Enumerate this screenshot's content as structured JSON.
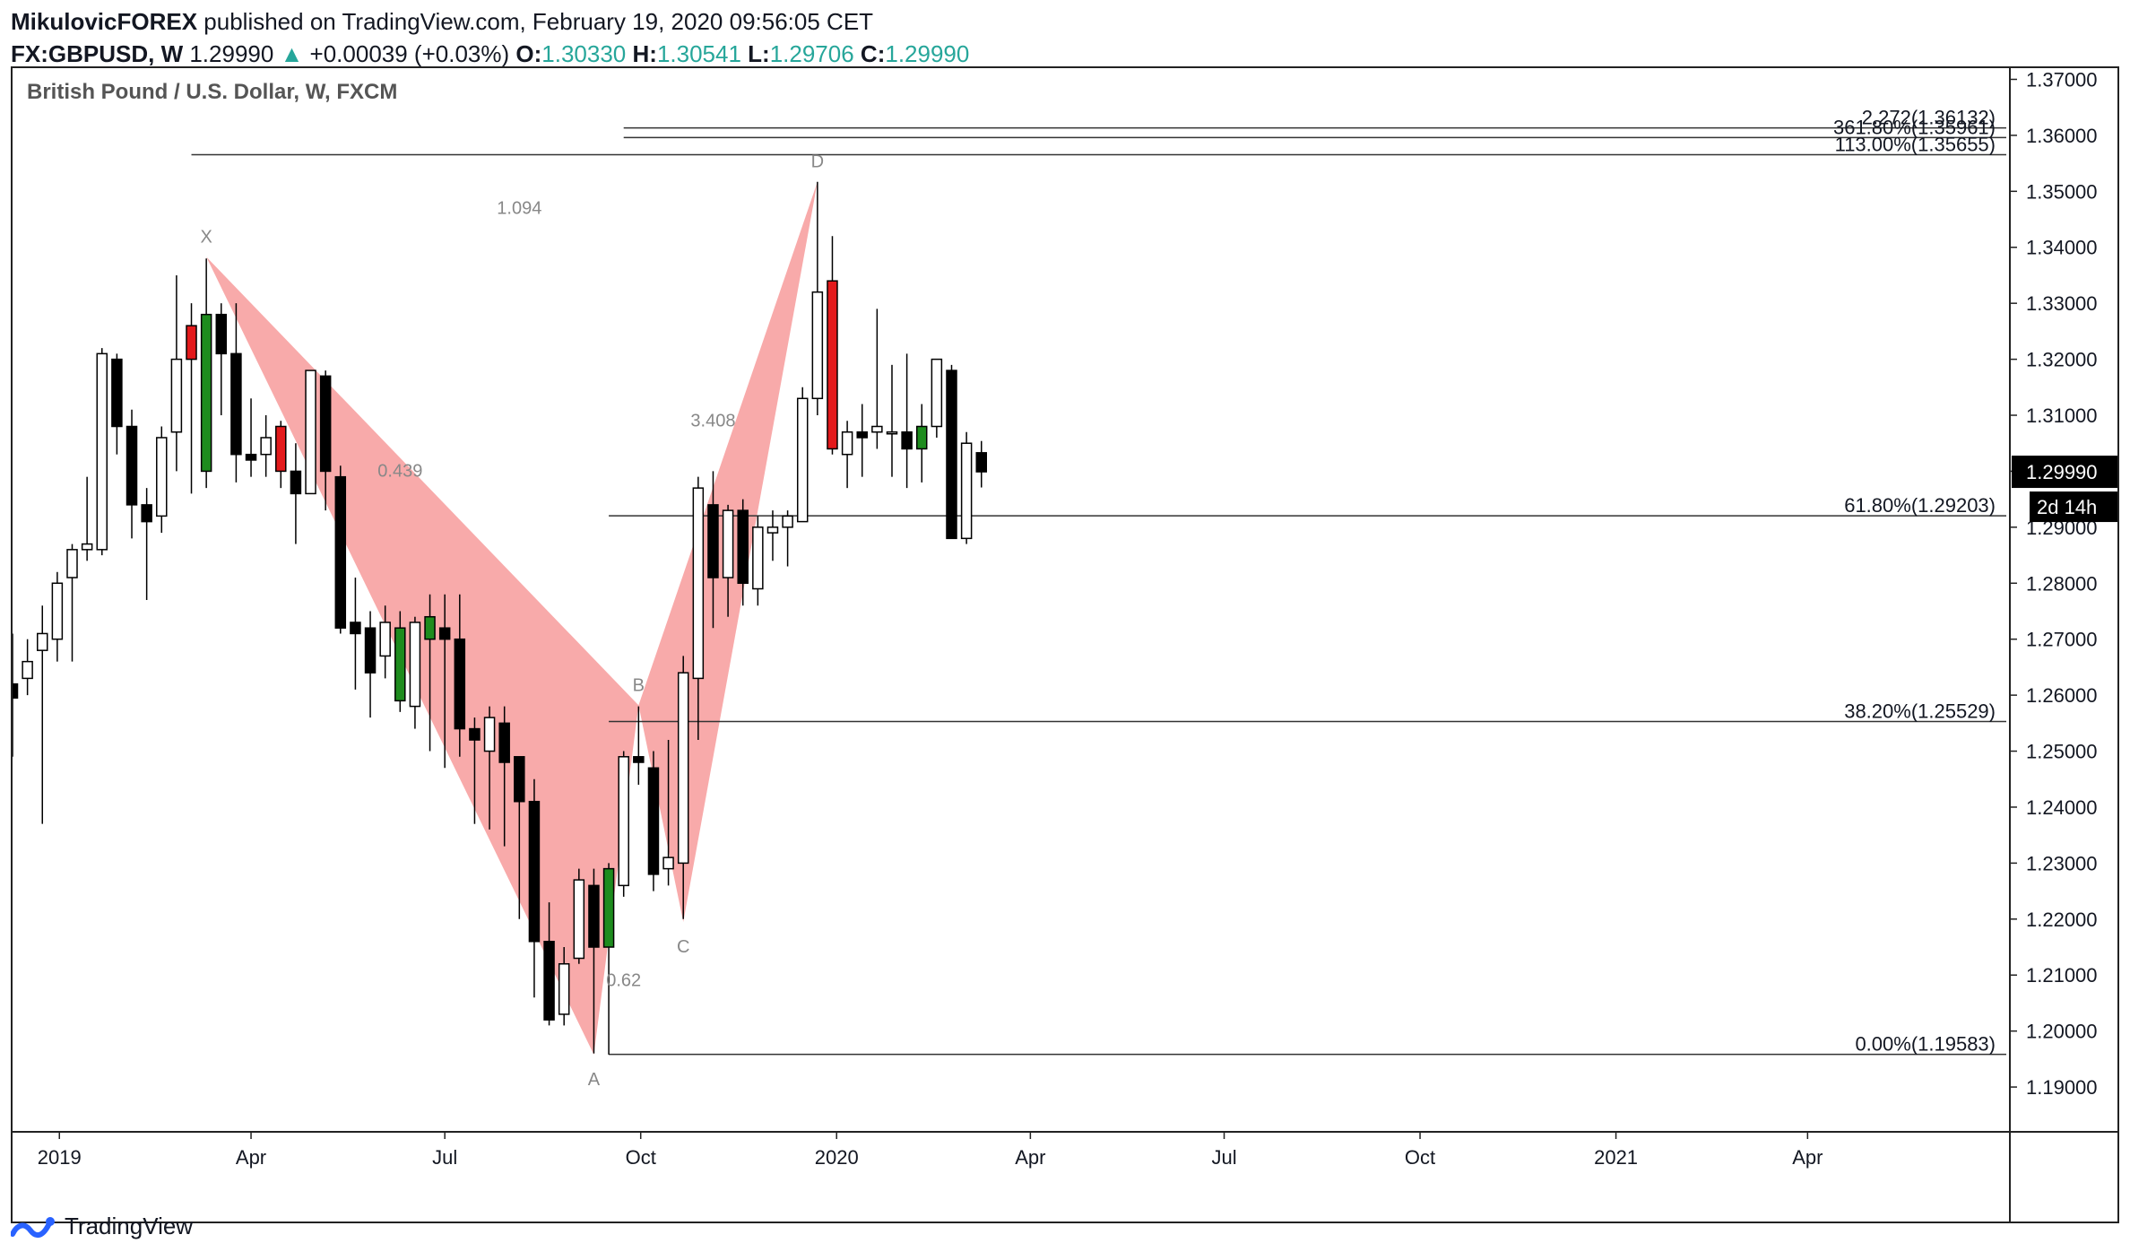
{
  "header": {
    "author": "MikulovicFOREX",
    "published": "published on TradingView.com, February 19, 2020 09:56:05 CET",
    "symbol": "FX:GBPUSD, W",
    "last": "1.29990",
    "change_arrow": "▲",
    "change": "+0.00039 (+0.03%)",
    "o_label": "O:",
    "o_value": "1.30330",
    "h_label": "H:",
    "h_value": "1.30541",
    "l_label": "L:",
    "l_value": "1.29706",
    "c_label": "C:",
    "c_value": "1.29990"
  },
  "footer": {
    "brand": "TradingView",
    "logo_icon": "tradingview-logo-icon"
  },
  "colors": {
    "pattern_fill": "#f8a5a5",
    "bull_highlight": "#1e8c1e",
    "bear_highlight": "#e31a1c",
    "up_text": "#26a69a"
  },
  "chart_data": {
    "type": "candlestick",
    "title": "British Pound / U.S. Dollar, W, FXCM",
    "ylim": [
      1.182,
      1.372
    ],
    "x_start": "2018-12-10",
    "x_end": "2021-07-05",
    "yticks": [
      "1.37000",
      "1.36000",
      "1.35000",
      "1.34000",
      "1.33000",
      "1.32000",
      "1.31000",
      "1.30000",
      "1.29000",
      "1.28000",
      "1.27000",
      "1.26000",
      "1.25000",
      "1.24000",
      "1.23000",
      "1.22000",
      "1.21000",
      "1.20000",
      "1.19000"
    ],
    "xticks": [
      {
        "label": "2019",
        "date": "2019-01-01"
      },
      {
        "label": "Apr",
        "date": "2019-04-01"
      },
      {
        "label": "Jul",
        "date": "2019-07-01"
      },
      {
        "label": "Oct",
        "date": "2019-10-01"
      },
      {
        "label": "2020",
        "date": "2020-01-01"
      },
      {
        "label": "Apr",
        "date": "2020-04-01"
      },
      {
        "label": "Jul",
        "date": "2020-07-01"
      },
      {
        "label": "Oct",
        "date": "2020-10-01"
      },
      {
        "label": "2021",
        "date": "2021-01-01"
      },
      {
        "label": "Apr",
        "date": "2021-04-01"
      }
    ],
    "last_price_label": "1.29990",
    "countdown_label": "2d 14h",
    "last_price": 1.2999,
    "candles": [
      {
        "date": "2018-12-10",
        "o": 1.262,
        "h": 1.271,
        "l": 1.249,
        "c": 1.2595
      },
      {
        "date": "2018-12-17",
        "o": 1.263,
        "h": 1.27,
        "l": 1.26,
        "c": 1.266
      },
      {
        "date": "2018-12-24",
        "o": 1.268,
        "h": 1.276,
        "l": 1.237,
        "c": 1.271
      },
      {
        "date": "2018-12-31",
        "o": 1.27,
        "h": 1.282,
        "l": 1.266,
        "c": 1.28
      },
      {
        "date": "2019-01-07",
        "o": 1.281,
        "h": 1.287,
        "l": 1.266,
        "c": 1.286
      },
      {
        "date": "2019-01-14",
        "o": 1.286,
        "h": 1.299,
        "l": 1.284,
        "c": 1.287
      },
      {
        "date": "2019-01-21",
        "o": 1.286,
        "h": 1.322,
        "l": 1.285,
        "c": 1.321
      },
      {
        "date": "2019-01-28",
        "o": 1.32,
        "h": 1.321,
        "l": 1.303,
        "c": 1.308
      },
      {
        "date": "2019-02-04",
        "o": 1.308,
        "h": 1.311,
        "l": 1.288,
        "c": 1.294
      },
      {
        "date": "2019-02-11",
        "o": 1.294,
        "h": 1.297,
        "l": 1.277,
        "c": 1.291
      },
      {
        "date": "2019-02-18",
        "o": 1.292,
        "h": 1.308,
        "l": 1.289,
        "c": 1.306
      },
      {
        "date": "2019-02-25",
        "o": 1.307,
        "h": 1.335,
        "l": 1.3,
        "c": 1.32
      },
      {
        "date": "2019-03-04",
        "o": 1.32,
        "h": 1.33,
        "l": 1.296,
        "c": 1.326
      },
      {
        "date": "2019-03-11",
        "o": 1.3,
        "h": 1.338,
        "l": 1.297,
        "c": 1.328
      },
      {
        "date": "2019-03-18",
        "o": 1.328,
        "h": 1.33,
        "l": 1.31,
        "c": 1.321
      },
      {
        "date": "2019-03-25",
        "o": 1.321,
        "h": 1.33,
        "l": 1.298,
        "c": 1.303
      },
      {
        "date": "2019-04-01",
        "o": 1.303,
        "h": 1.313,
        "l": 1.299,
        "c": 1.302
      },
      {
        "date": "2019-04-08",
        "o": 1.303,
        "h": 1.31,
        "l": 1.299,
        "c": 1.306
      },
      {
        "date": "2019-04-15",
        "o": 1.308,
        "h": 1.309,
        "l": 1.297,
        "c": 1.3
      },
      {
        "date": "2019-04-22",
        "o": 1.3,
        "h": 1.305,
        "l": 1.287,
        "c": 1.296
      },
      {
        "date": "2019-04-29",
        "o": 1.296,
        "h": 1.318,
        "l": 1.296,
        "c": 1.318
      },
      {
        "date": "2019-05-06",
        "o": 1.317,
        "h": 1.318,
        "l": 1.293,
        "c": 1.3
      },
      {
        "date": "2019-05-13",
        "o": 1.299,
        "h": 1.301,
        "l": 1.271,
        "c": 1.272
      },
      {
        "date": "2019-05-20",
        "o": 1.273,
        "h": 1.281,
        "l": 1.261,
        "c": 1.271
      },
      {
        "date": "2019-05-27",
        "o": 1.272,
        "h": 1.275,
        "l": 1.256,
        "c": 1.264
      },
      {
        "date": "2019-06-03",
        "o": 1.267,
        "h": 1.276,
        "l": 1.263,
        "c": 1.273
      },
      {
        "date": "2019-06-10",
        "o": 1.272,
        "h": 1.275,
        "l": 1.257,
        "c": 1.259
      },
      {
        "date": "2019-06-17",
        "o": 1.258,
        "h": 1.274,
        "l": 1.254,
        "c": 1.273
      },
      {
        "date": "2019-06-24",
        "o": 1.274,
        "h": 1.278,
        "l": 1.25,
        "c": 1.27
      },
      {
        "date": "2019-07-01",
        "o": 1.272,
        "h": 1.278,
        "l": 1.247,
        "c": 1.27
      },
      {
        "date": "2019-07-08",
        "o": 1.27,
        "h": 1.278,
        "l": 1.249,
        "c": 1.254
      },
      {
        "date": "2019-07-15",
        "o": 1.254,
        "h": 1.256,
        "l": 1.237,
        "c": 1.252
      },
      {
        "date": "2019-07-22",
        "o": 1.25,
        "h": 1.258,
        "l": 1.236,
        "c": 1.256
      },
      {
        "date": "2019-07-29",
        "o": 1.255,
        "h": 1.258,
        "l": 1.233,
        "c": 1.248
      },
      {
        "date": "2019-08-05",
        "o": 1.249,
        "h": 1.249,
        "l": 1.22,
        "c": 1.241
      },
      {
        "date": "2019-08-12",
        "o": 1.241,
        "h": 1.245,
        "l": 1.206,
        "c": 1.216
      },
      {
        "date": "2019-08-19",
        "o": 1.216,
        "h": 1.223,
        "l": 1.201,
        "c": 1.202
      },
      {
        "date": "2019-08-26",
        "o": 1.203,
        "h": 1.215,
        "l": 1.201,
        "c": 1.212
      },
      {
        "date": "2019-09-02",
        "o": 1.213,
        "h": 1.229,
        "l": 1.212,
        "c": 1.227
      },
      {
        "date": "2019-09-09",
        "o": 1.226,
        "h": 1.229,
        "l": 1.196,
        "c": 1.215
      },
      {
        "date": "2019-09-16",
        "o": 1.215,
        "h": 1.23,
        "l": 1.1958,
        "c": 1.229
      },
      {
        "date": "2019-09-23",
        "o": 1.226,
        "h": 1.25,
        "l": 1.224,
        "c": 1.249
      },
      {
        "date": "2019-09-30",
        "o": 1.249,
        "h": 1.258,
        "l": 1.244,
        "c": 1.248
      },
      {
        "date": "2019-10-07",
        "o": 1.247,
        "h": 1.25,
        "l": 1.225,
        "c": 1.228
      },
      {
        "date": "2019-10-14",
        "o": 1.229,
        "h": 1.252,
        "l": 1.226,
        "c": 1.231
      },
      {
        "date": "2019-10-21",
        "o": 1.23,
        "h": 1.267,
        "l": 1.22,
        "c": 1.264
      },
      {
        "date": "2019-10-28",
        "o": 1.263,
        "h": 1.299,
        "l": 1.252,
        "c": 1.297
      },
      {
        "date": "2019-11-04",
        "o": 1.294,
        "h": 1.3,
        "l": 1.272,
        "c": 1.281
      },
      {
        "date": "2019-11-11",
        "o": 1.281,
        "h": 1.294,
        "l": 1.274,
        "c": 1.293
      },
      {
        "date": "2019-11-18",
        "o": 1.293,
        "h": 1.295,
        "l": 1.276,
        "c": 1.28
      },
      {
        "date": "2019-11-25",
        "o": 1.279,
        "h": 1.292,
        "l": 1.276,
        "c": 1.29
      },
      {
        "date": "2019-12-02",
        "o": 1.289,
        "h": 1.293,
        "l": 1.284,
        "c": 1.29
      },
      {
        "date": "2019-12-09",
        "o": 1.29,
        "h": 1.293,
        "l": 1.283,
        "c": 1.292
      },
      {
        "date": "2019-12-16",
        "o": 1.291,
        "h": 1.315,
        "l": 1.291,
        "c": 1.313
      },
      {
        "date": "2019-12-23",
        "o": 1.313,
        "h": 1.3517,
        "l": 1.31,
        "c": 1.332
      },
      {
        "date": "2019-12-30",
        "o": 1.334,
        "h": 1.342,
        "l": 1.303,
        "c": 1.304
      },
      {
        "date": "2020-01-06",
        "o": 1.303,
        "h": 1.309,
        "l": 1.297,
        "c": 1.307
      },
      {
        "date": "2020-01-13",
        "o": 1.307,
        "h": 1.312,
        "l": 1.299,
        "c": 1.306
      },
      {
        "date": "2020-01-20",
        "o": 1.307,
        "h": 1.329,
        "l": 1.304,
        "c": 1.308
      },
      {
        "date": "2020-01-27",
        "o": 1.307,
        "h": 1.319,
        "l": 1.299,
        "c": 1.307
      },
      {
        "date": "2020-02-03",
        "o": 1.307,
        "h": 1.321,
        "l": 1.297,
        "c": 1.304
      },
      {
        "date": "2020-02-10",
        "o": 1.304,
        "h": 1.312,
        "l": 1.298,
        "c": 1.308
      },
      {
        "date": "2020-02-17",
        "o": 1.308,
        "h": 1.32,
        "l": 1.306,
        "c": 1.32
      },
      {
        "date": "2020-02-24",
        "o": 1.318,
        "h": 1.319,
        "l": 1.288,
        "c": 1.288
      },
      {
        "date": "2020-03-02",
        "o": 1.288,
        "h": 1.307,
        "l": 1.287,
        "c": 1.305
      },
      {
        "date": "2020-03-09",
        "o": 1.3033,
        "h": 1.3054,
        "l": 1.2971,
        "c": 1.2999
      }
    ],
    "highlight_candles": [
      {
        "date": "2019-03-04",
        "color": "bear_highlight"
      },
      {
        "date": "2019-03-11",
        "color": "bull_highlight"
      },
      {
        "date": "2019-04-15",
        "color": "bear_highlight"
      },
      {
        "date": "2019-06-10",
        "color": "bull_highlight"
      },
      {
        "date": "2019-06-24",
        "color": "bull_highlight"
      },
      {
        "date": "2019-09-16",
        "color": "bull_highlight"
      },
      {
        "date": "2019-12-30",
        "color": "bear_highlight"
      },
      {
        "date": "2020-02-10",
        "color": "bull_highlight"
      }
    ],
    "pattern_points": [
      {
        "label": "X",
        "date": "2019-03-11",
        "price": 1.3383
      },
      {
        "label": "A",
        "date": "2019-09-09",
        "price": 1.1958
      },
      {
        "label": "B",
        "date": "2019-09-30",
        "price": 1.2582
      },
      {
        "label": "C",
        "date": "2019-10-21",
        "price": 1.2195
      },
      {
        "label": "D",
        "date": "2019-12-23",
        "price": 1.3517
      }
    ],
    "pattern_ratios": [
      {
        "text": "1.094",
        "date": "2019-08-05",
        "price": 1.346
      },
      {
        "text": "0.439",
        "date": "2019-06-10",
        "price": 1.299
      },
      {
        "text": "3.408",
        "date": "2019-11-04",
        "price": 1.308
      },
      {
        "text": "0.62",
        "date": "2019-09-23",
        "price": 1.208
      }
    ],
    "fib_levels": [
      {
        "label": "2.272(1.36132)",
        "price": 1.36132,
        "start_date": "2019-09-23"
      },
      {
        "label": "361.80%(1.35961)",
        "price": 1.35961,
        "start_date": "2019-09-23"
      },
      {
        "label": "113.00%(1.35655)",
        "price": 1.35655,
        "start_date": "2019-03-04"
      },
      {
        "label": "61.80%(1.29203)",
        "price": 1.29203,
        "start_date": "2019-09-16"
      },
      {
        "label": "38.20%(1.25529)",
        "price": 1.25529,
        "start_date": "2019-09-16"
      },
      {
        "label": "0.00%(1.19583)",
        "price": 1.19583,
        "start_date": "2019-09-16"
      }
    ]
  }
}
